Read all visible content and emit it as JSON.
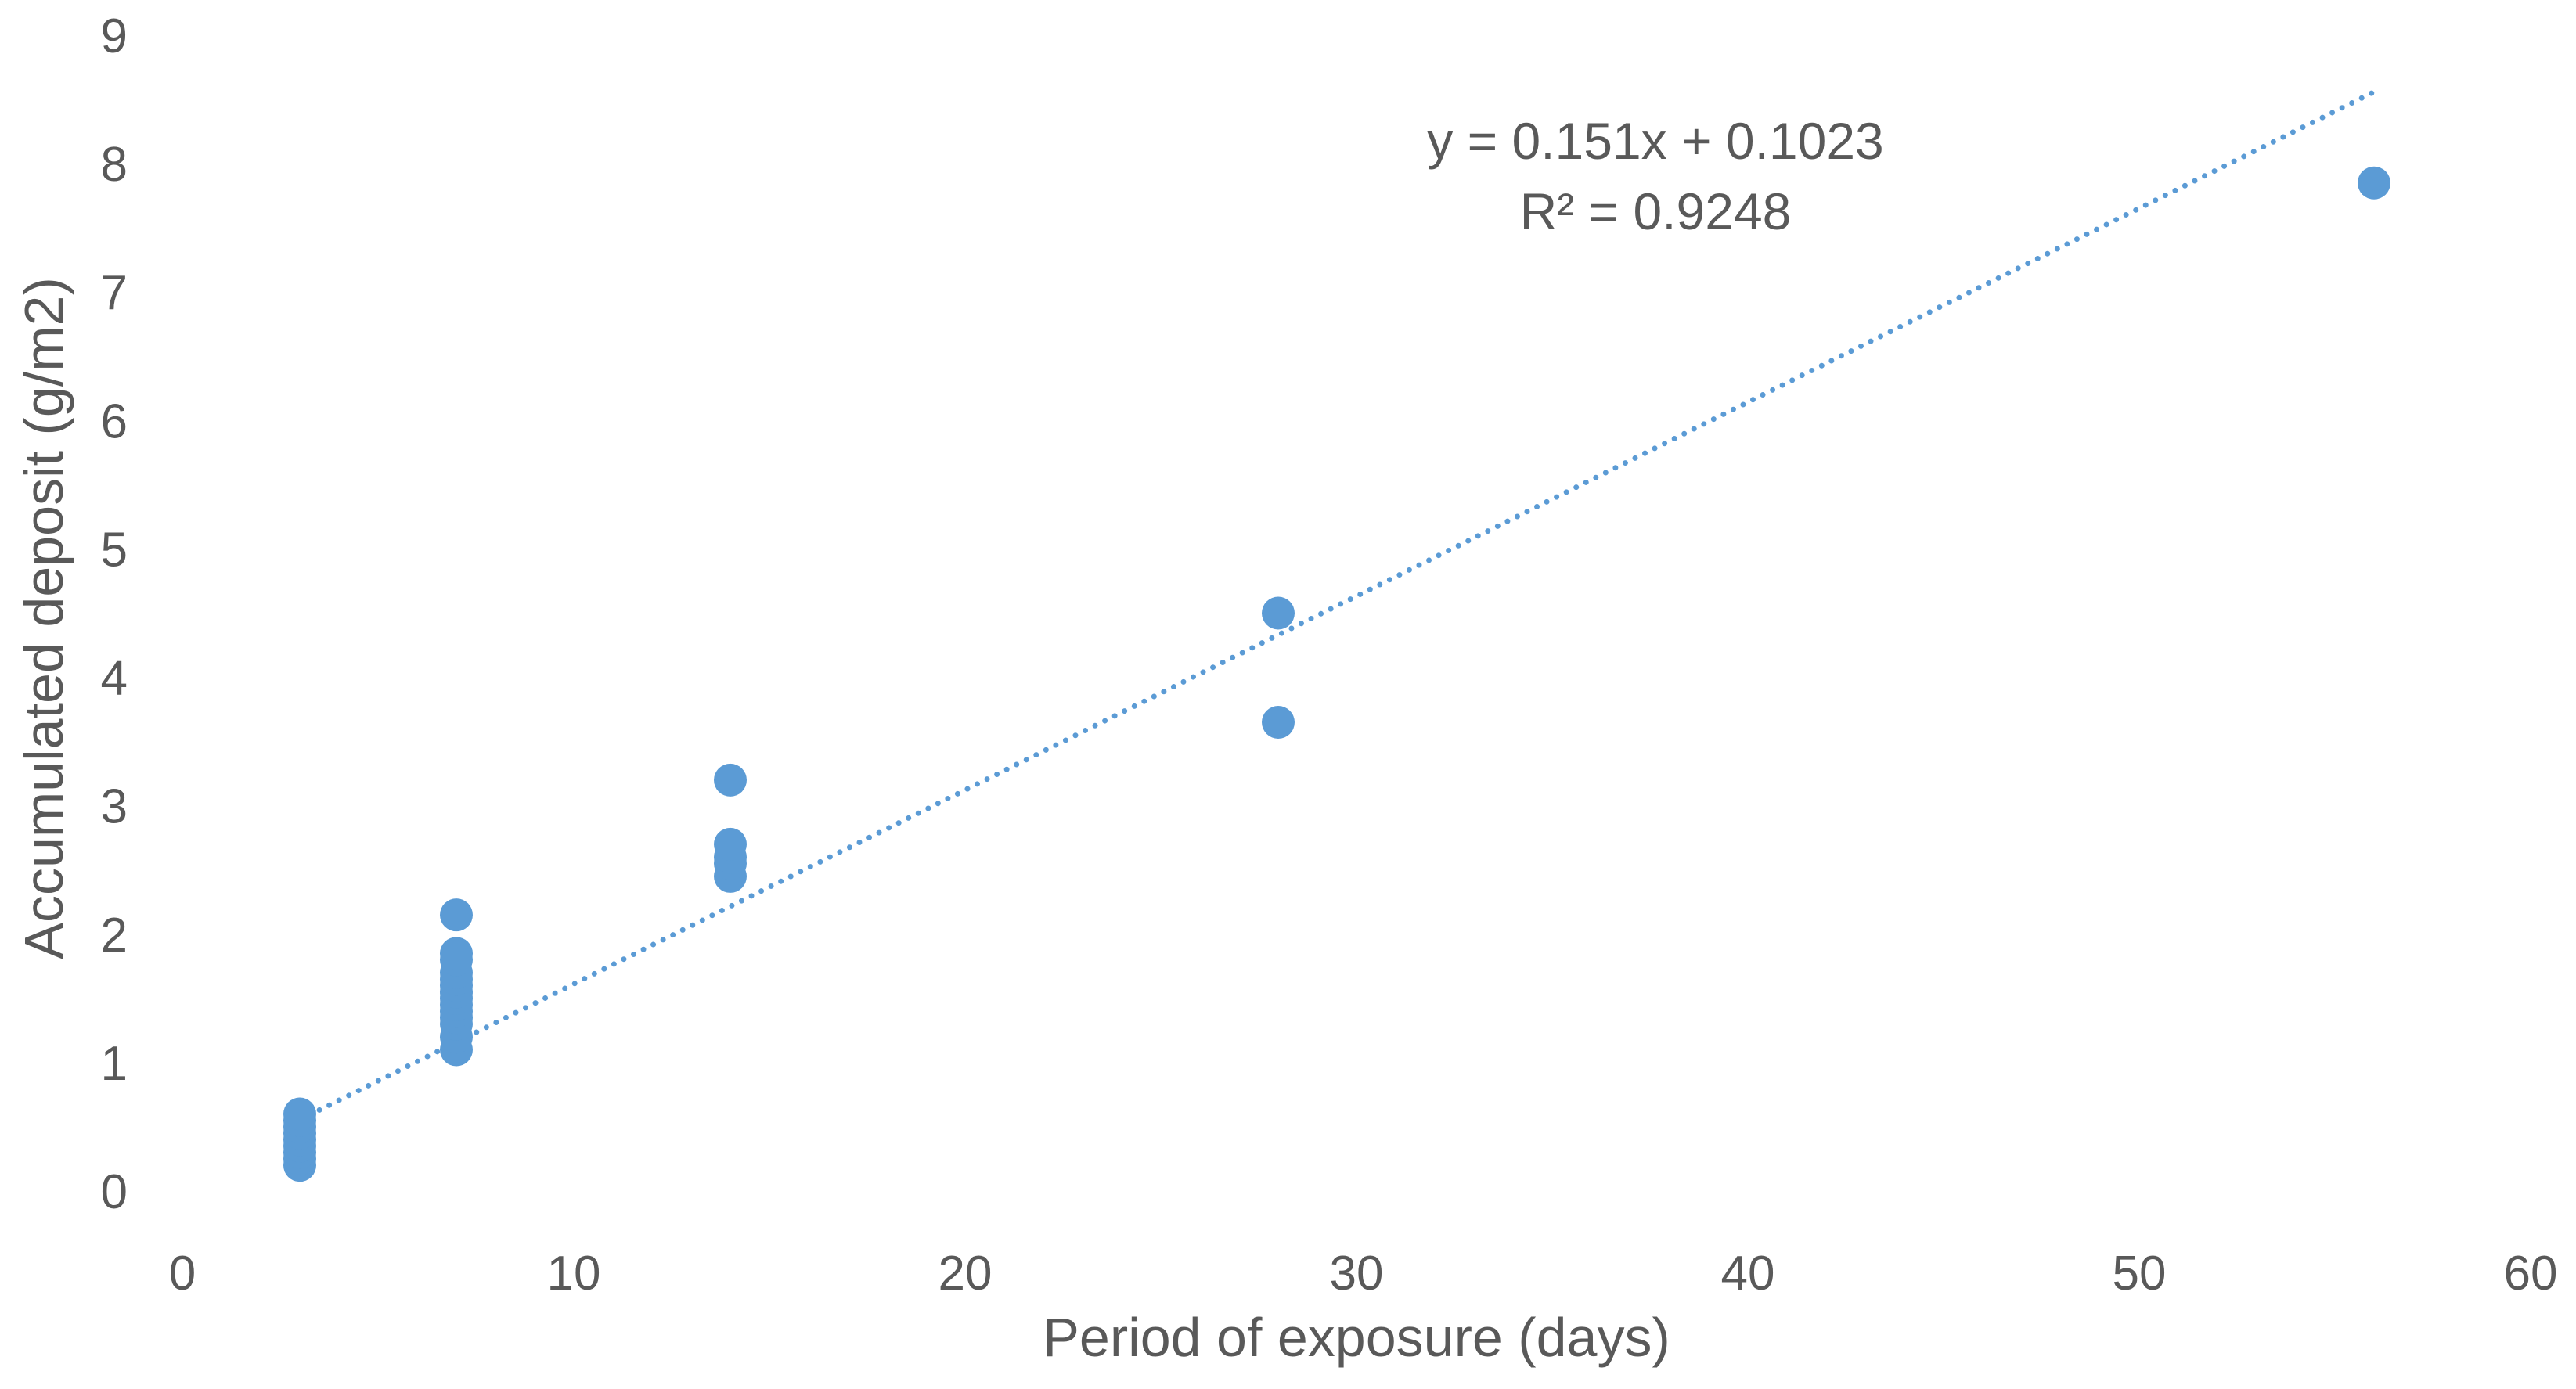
{
  "chart_data": {
    "type": "scatter",
    "title": "",
    "xlabel": "Period of exposure (days)",
    "ylabel": "Accumulated deposit (g/m2)",
    "xlim": [
      0,
      60
    ],
    "ylim": [
      0,
      9
    ],
    "x_ticks": [
      0,
      10,
      20,
      30,
      40,
      50,
      60
    ],
    "y_ticks": [
      0,
      1,
      2,
      3,
      4,
      5,
      6,
      7,
      8,
      9
    ],
    "x_tick_labels": [
      "0",
      "10",
      "20",
      "30",
      "40",
      "50",
      "60"
    ],
    "y_tick_labels": [
      "0",
      "1",
      "2",
      "3",
      "4",
      "5",
      "6",
      "7",
      "8",
      "9"
    ],
    "grid": false,
    "legend": "none",
    "marker_color": "#5B9BD5",
    "series": [
      {
        "points": [
          {
            "x": 3,
            "y": 0.2
          },
          {
            "x": 3,
            "y": 0.25
          },
          {
            "x": 3,
            "y": 0.3
          },
          {
            "x": 3,
            "y": 0.35
          },
          {
            "x": 3,
            "y": 0.4
          },
          {
            "x": 3,
            "y": 0.45
          },
          {
            "x": 3,
            "y": 0.5
          },
          {
            "x": 3,
            "y": 0.55
          },
          {
            "x": 3,
            "y": 0.6
          },
          {
            "x": 7,
            "y": 1.1
          },
          {
            "x": 7,
            "y": 1.2
          },
          {
            "x": 7,
            "y": 1.3
          },
          {
            "x": 7,
            "y": 1.35
          },
          {
            "x": 7,
            "y": 1.4
          },
          {
            "x": 7,
            "y": 1.45
          },
          {
            "x": 7,
            "y": 1.5
          },
          {
            "x": 7,
            "y": 1.55
          },
          {
            "x": 7,
            "y": 1.6
          },
          {
            "x": 7,
            "y": 1.65
          },
          {
            "x": 7,
            "y": 1.7
          },
          {
            "x": 7,
            "y": 1.8
          },
          {
            "x": 7,
            "y": 1.85
          },
          {
            "x": 7,
            "y": 2.15
          },
          {
            "x": 14,
            "y": 2.45
          },
          {
            "x": 14,
            "y": 2.55
          },
          {
            "x": 14,
            "y": 2.6
          },
          {
            "x": 14,
            "y": 2.7
          },
          {
            "x": 14,
            "y": 3.2
          },
          {
            "x": 28,
            "y": 3.65
          },
          {
            "x": 28,
            "y": 4.5
          },
          {
            "x": 56,
            "y": 7.85
          }
        ]
      }
    ],
    "trendline": {
      "type": "linear",
      "slope": 0.151,
      "intercept": 0.1023,
      "x_range": [
        3,
        56
      ],
      "style": "dotted",
      "color": "#5B9BD5"
    },
    "annotations": {
      "equation": "y = 0.151x + 0.1023",
      "r_squared": "R² = 0.9248"
    }
  }
}
